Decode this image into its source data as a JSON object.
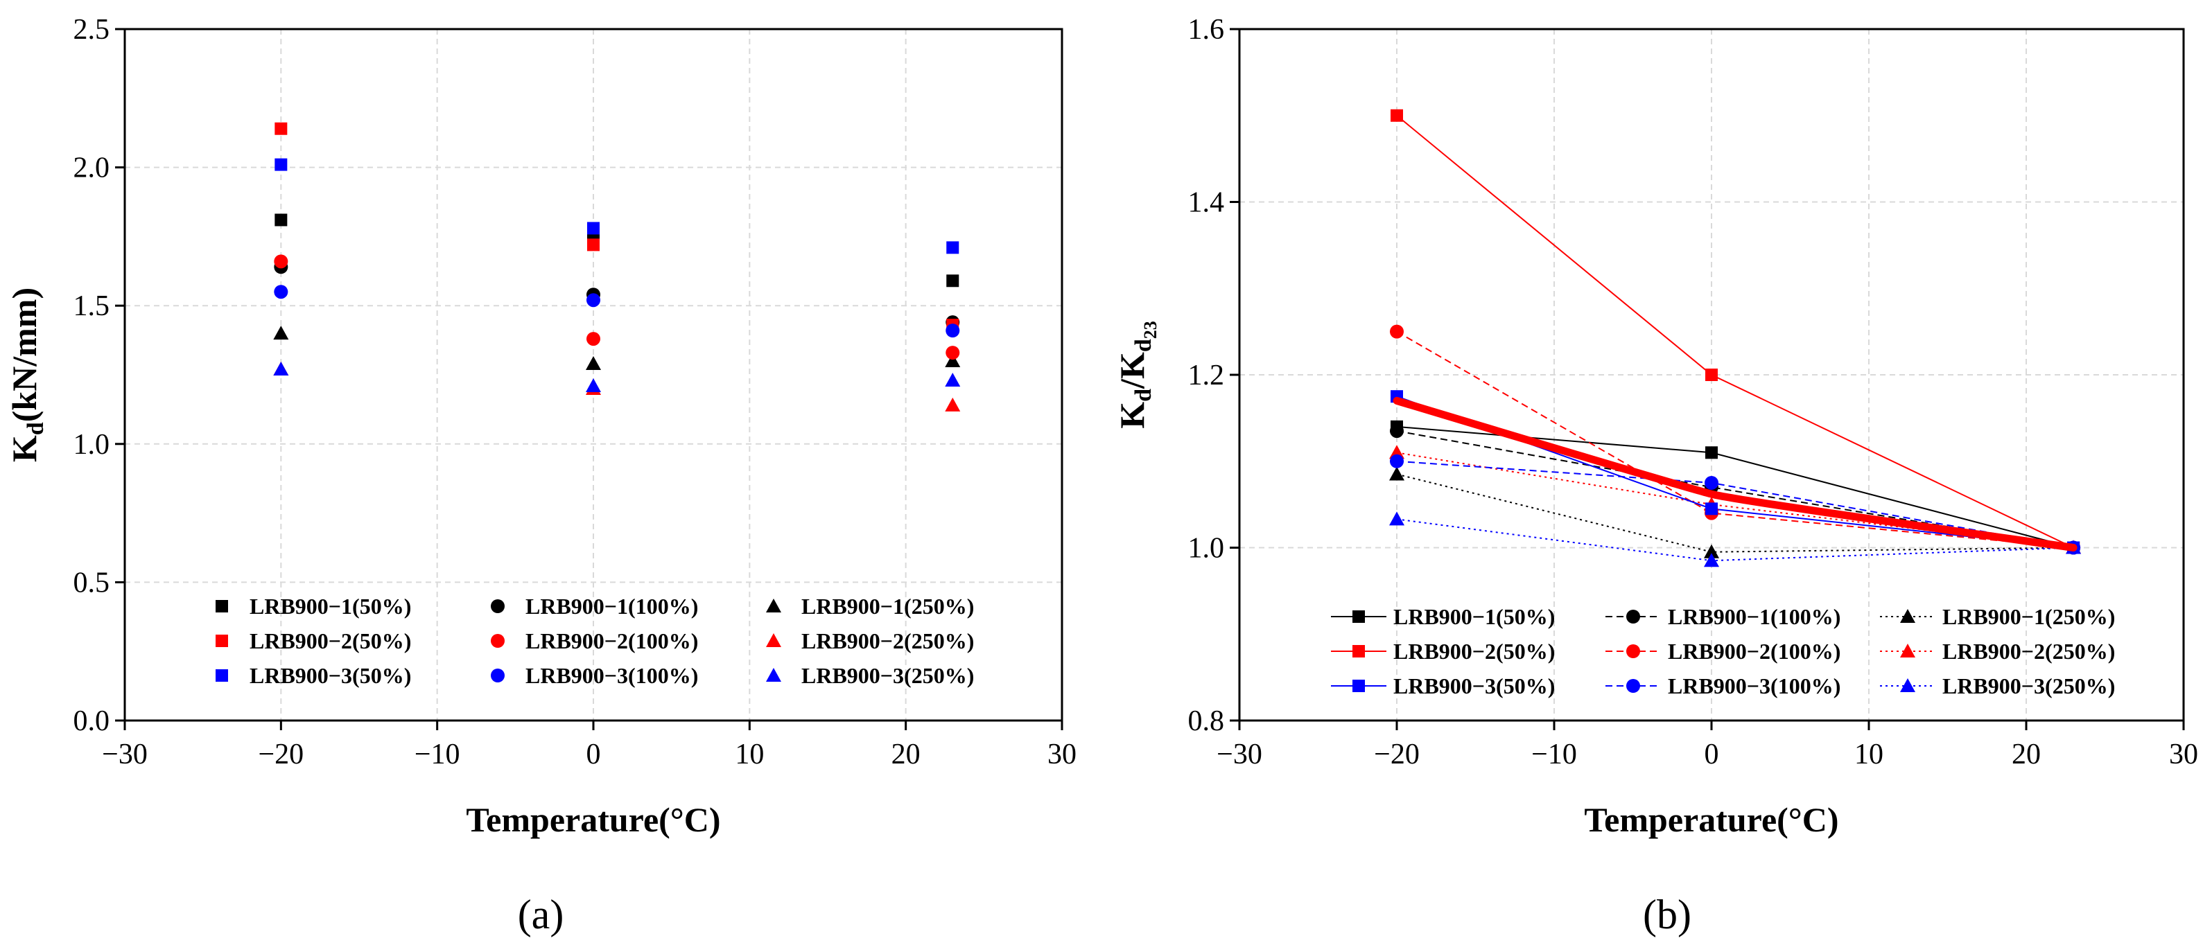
{
  "panel_labels": {
    "a": "(a)",
    "b": "(b)"
  },
  "markers": {
    "s50": "square",
    "s100": "circle",
    "s250": "triangle"
  },
  "chart_data": [
    {
      "id": "a",
      "type": "scatter",
      "xlabel": "Temperature(°C)",
      "ylabel_main": "K",
      "ylabel_sub": "d",
      "ylabel_rest": "(kN/mm)",
      "xlim": [
        -30,
        30
      ],
      "ylim": [
        0.0,
        2.5
      ],
      "xticks": [
        -30,
        -20,
        -10,
        0,
        10,
        20,
        30
      ],
      "xtick_labels": [
        "−30",
        "−20",
        "−10",
        "0",
        "10",
        "20",
        "30"
      ],
      "yticks": [
        0.0,
        0.5,
        1.0,
        1.5,
        2.0,
        2.5
      ],
      "ytick_labels": [
        "0.0",
        "0.5",
        "1.0",
        "1.5",
        "2.0",
        "2.5"
      ],
      "grid": true,
      "legend_placement": "bottom-center",
      "x": [
        -20,
        0,
        23
      ],
      "series": [
        {
          "name": "LRB900−1(50%)",
          "color": "#000000",
          "marker": "square",
          "values": [
            1.81,
            1.76,
            1.59
          ]
        },
        {
          "name": "LRB900−1(100%)",
          "color": "#000000",
          "marker": "circle",
          "values": [
            1.64,
            1.54,
            1.44
          ]
        },
        {
          "name": "LRB900−1(250%)",
          "color": "#000000",
          "marker": "triangle",
          "values": [
            1.4,
            1.29,
            1.3
          ]
        },
        {
          "name": "LRB900−2(50%)",
          "color": "#ff0000",
          "marker": "square",
          "values": [
            2.14,
            1.72,
            1.43
          ]
        },
        {
          "name": "LRB900−2(100%)",
          "color": "#ff0000",
          "marker": "circle",
          "values": [
            1.66,
            1.38,
            1.33
          ]
        },
        {
          "name": "LRB900−2(250%)",
          "color": "#ff0000",
          "marker": "triangle",
          "values": [
            1.27,
            1.2,
            1.14
          ]
        },
        {
          "name": "LRB900−3(50%)",
          "color": "#0000ff",
          "marker": "square",
          "values": [
            2.01,
            1.78,
            1.71
          ]
        },
        {
          "name": "LRB900−3(100%)",
          "color": "#0000ff",
          "marker": "circle",
          "values": [
            1.55,
            1.52,
            1.41
          ]
        },
        {
          "name": "LRB900−3(250%)",
          "color": "#0000ff",
          "marker": "triangle",
          "values": [
            1.27,
            1.21,
            1.23
          ]
        }
      ]
    },
    {
      "id": "b",
      "type": "line",
      "xlabel": "Temperature(°C)",
      "ylabel_main": "K",
      "ylabel_sub": "d",
      "ylabel_div": "/K",
      "ylabel_sub2": "d",
      "ylabel_subsub": "23",
      "xlim": [
        -30,
        30
      ],
      "ylim": [
        0.8,
        1.6
      ],
      "xticks": [
        -30,
        -20,
        -10,
        0,
        10,
        20,
        30
      ],
      "xtick_labels": [
        "−30",
        "−20",
        "−10",
        "0",
        "10",
        "20",
        "30"
      ],
      "yticks": [
        0.8,
        1.0,
        1.2,
        1.4,
        1.6
      ],
      "ytick_labels": [
        "0.8",
        "1.0",
        "1.2",
        "1.4",
        "1.6"
      ],
      "grid": true,
      "legend_placement": "bottom-center",
      "x": [
        -20,
        0,
        23
      ],
      "series": [
        {
          "name": "LRB900−1(50%)",
          "color": "#000000",
          "marker": "square",
          "line": "solid",
          "values": [
            1.14,
            1.11,
            1.0
          ]
        },
        {
          "name": "LRB900−1(100%)",
          "color": "#000000",
          "marker": "circle",
          "line": "dashed",
          "values": [
            1.135,
            1.07,
            1.0
          ]
        },
        {
          "name": "LRB900−1(250%)",
          "color": "#000000",
          "marker": "triangle",
          "line": "dotted",
          "values": [
            1.085,
            0.995,
            1.0
          ]
        },
        {
          "name": "LRB900−2(50%)",
          "color": "#ff0000",
          "marker": "square",
          "line": "solid",
          "values": [
            1.5,
            1.2,
            1.0
          ]
        },
        {
          "name": "LRB900−2(100%)",
          "color": "#ff0000",
          "marker": "circle",
          "line": "dashed",
          "values": [
            1.25,
            1.04,
            1.0
          ]
        },
        {
          "name": "LRB900−2(250%)",
          "color": "#ff0000",
          "marker": "triangle",
          "line": "dotted",
          "values": [
            1.11,
            1.05,
            1.0
          ]
        },
        {
          "name": "LRB900−3(50%)",
          "color": "#0000ff",
          "marker": "square",
          "line": "solid",
          "values": [
            1.175,
            1.045,
            1.0
          ]
        },
        {
          "name": "LRB900−3(100%)",
          "color": "#0000ff",
          "marker": "circle",
          "line": "dashed",
          "values": [
            1.1,
            1.075,
            1.0
          ]
        },
        {
          "name": "LRB900−3(250%)",
          "color": "#0000ff",
          "marker": "triangle",
          "line": "dotted",
          "values": [
            1.033,
            0.985,
            1.0
          ]
        }
      ],
      "trend": {
        "color": "#ff0000",
        "values": [
          1.17,
          1.062,
          1.0
        ]
      }
    }
  ]
}
